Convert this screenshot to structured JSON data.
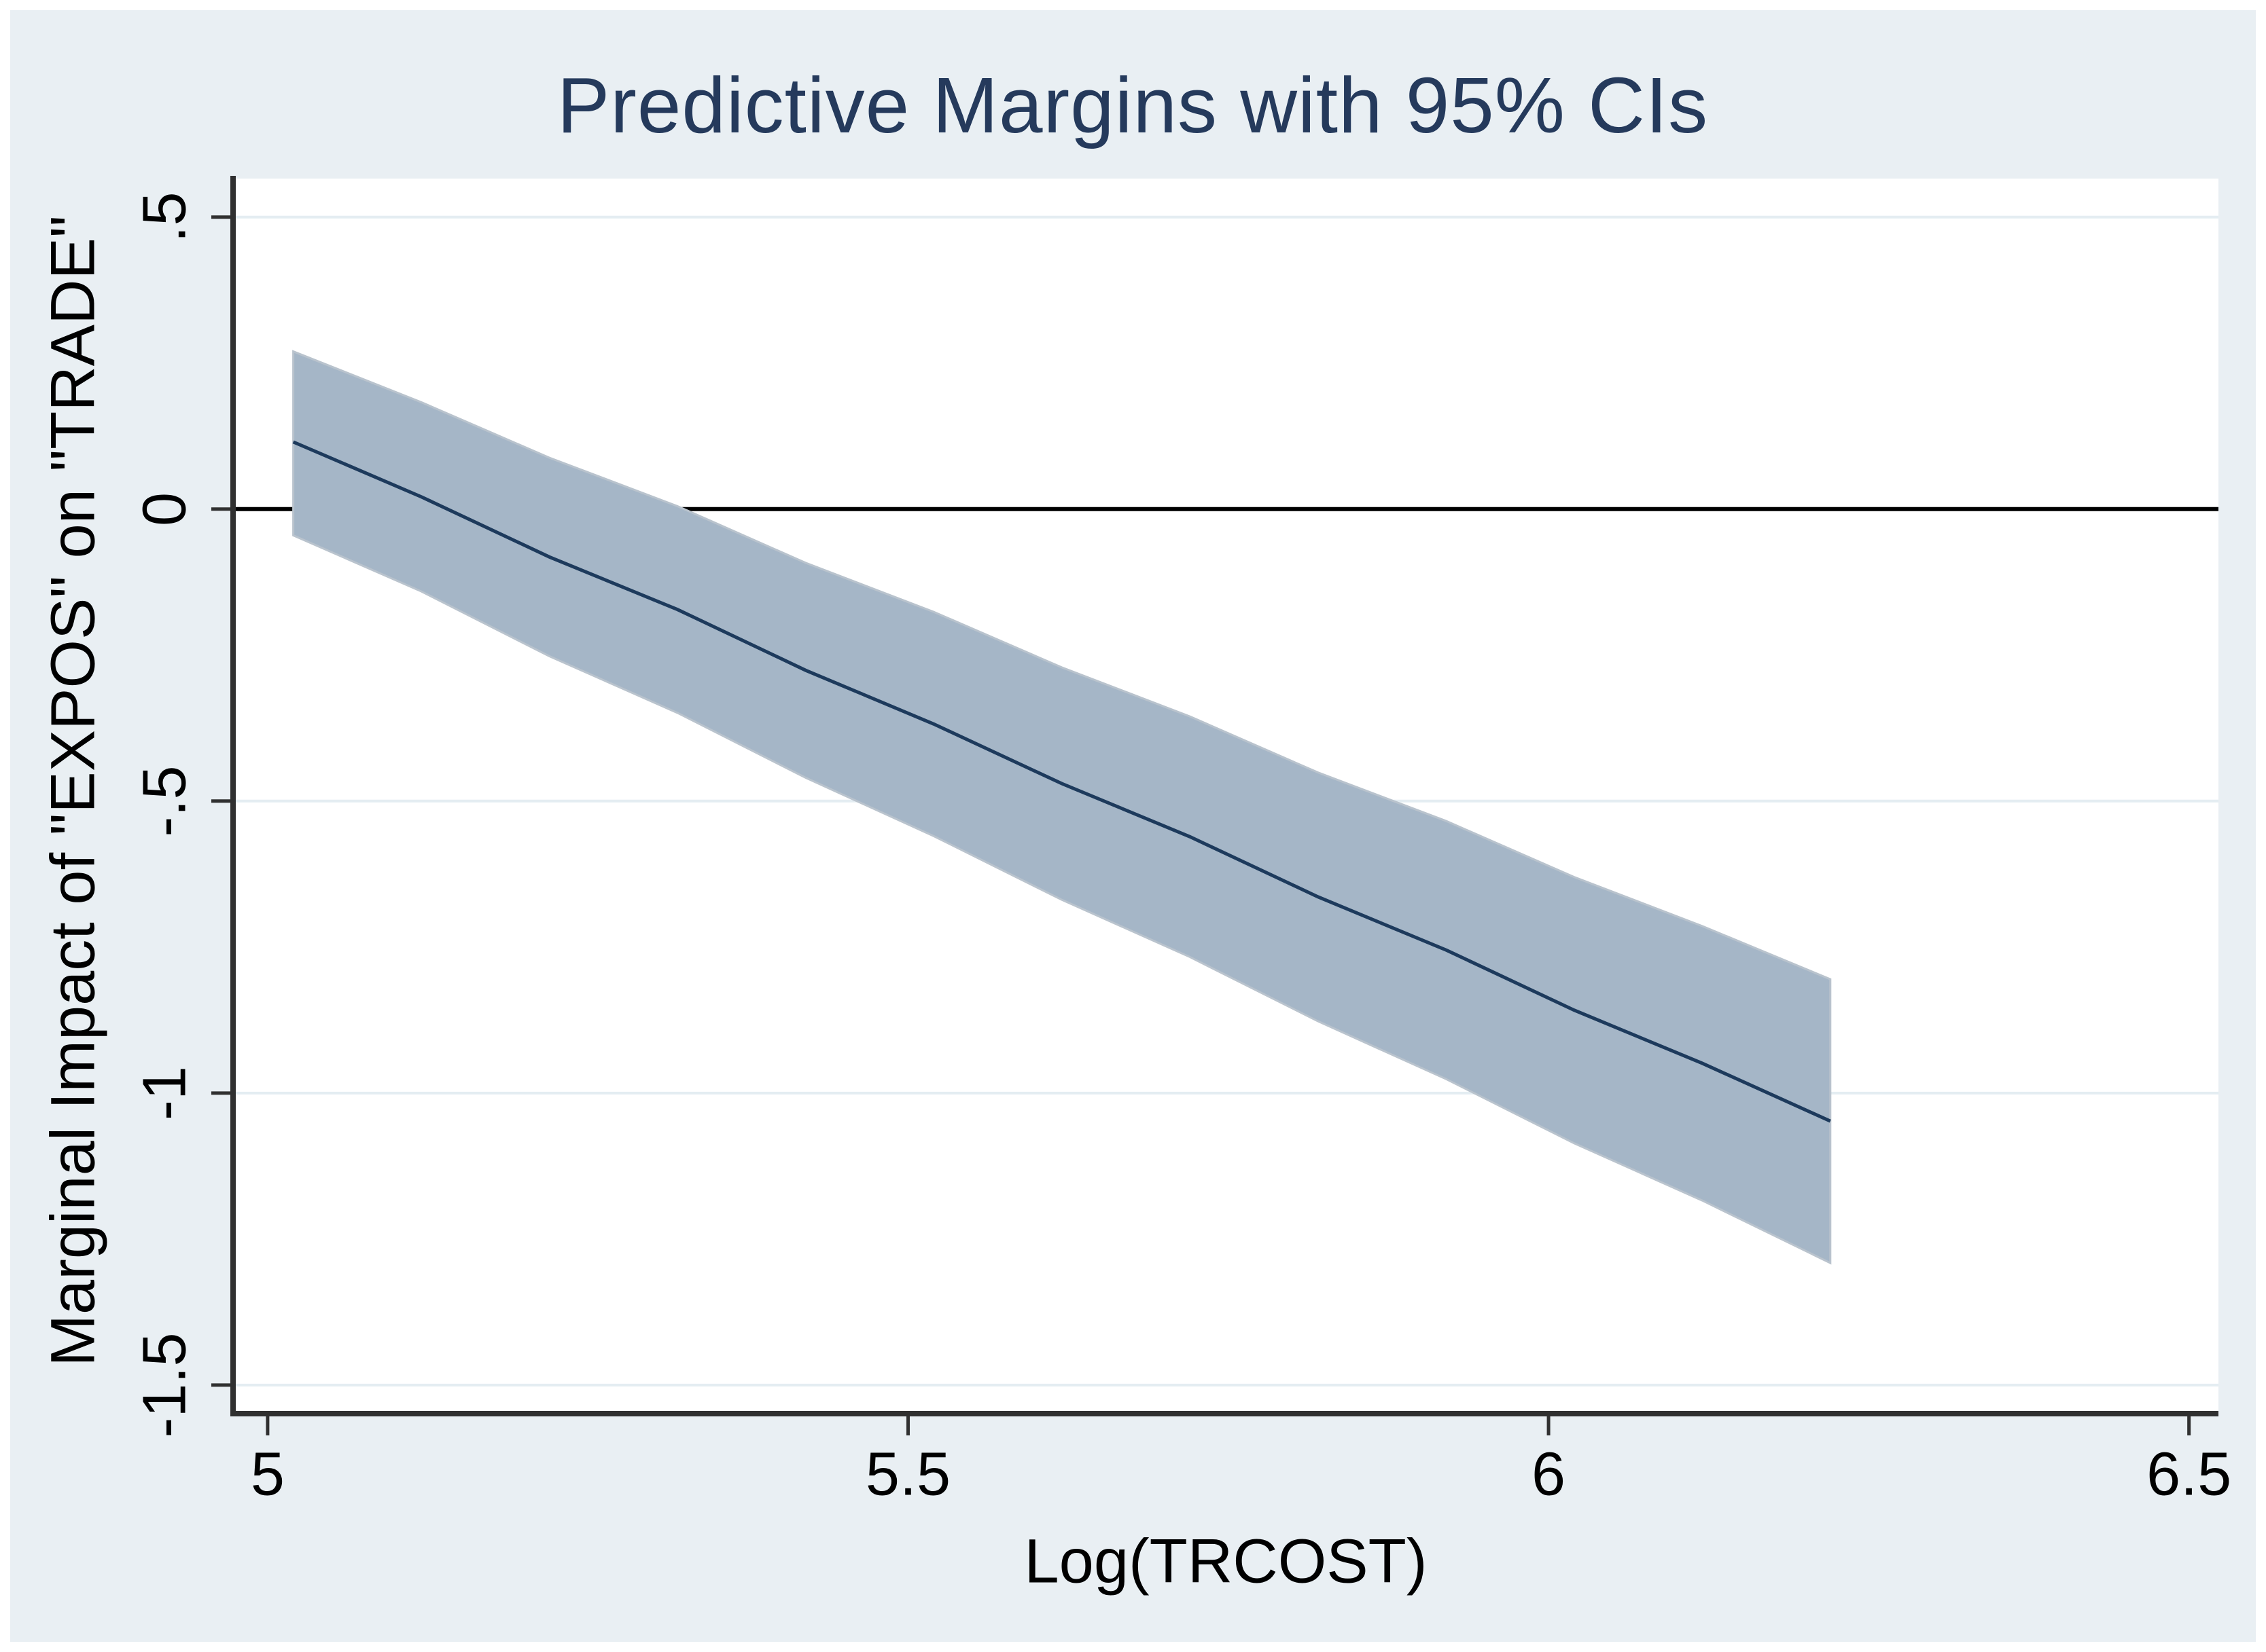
{
  "figure": {
    "background_color": "#ffffff",
    "panel_color": "#e9eff3"
  },
  "chart_data": {
    "type": "line",
    "subtype": "line-with-confidence-band",
    "title": "Predictive Margins with 95% CIs",
    "xlabel": "Log(TRCOST)",
    "ylabel": "Marginal Impact of \"EXPOS\" on \"TRADE\"",
    "legend": "none",
    "grid": "on",
    "xlim": [
      4.973,
      6.523
    ],
    "ylim": [
      -1.549,
      0.566
    ],
    "x_tick_values": [
      5,
      5.5,
      6,
      6.5
    ],
    "x_tick_labels": [
      "5",
      "5.5",
      "6",
      "6.5"
    ],
    "y_tick_values": [
      0.5,
      0,
      -0.5,
      -1,
      -1.5
    ],
    "y_tick_labels": [
      ".5",
      "0",
      "-.5",
      "-1",
      "-1.5"
    ],
    "y_gridline_values": [
      0.5,
      -0.5,
      -1,
      -1.5
    ],
    "zero_line_y": 0,
    "x": [
      5.02,
      5.12,
      5.22,
      5.32,
      5.42,
      5.52,
      5.62,
      5.72,
      5.82,
      5.92,
      6.02,
      6.12,
      6.22
    ],
    "margin": [
      0.115,
      0.021,
      -0.082,
      -0.172,
      -0.276,
      -0.368,
      -0.47,
      -0.561,
      -0.664,
      -0.755,
      -0.858,
      -0.949,
      -1.048
    ],
    "ci_upper": [
      0.27,
      0.183,
      0.088,
      0.005,
      -0.092,
      -0.176,
      -0.271,
      -0.355,
      -0.451,
      -0.534,
      -0.63,
      -0.714,
      -0.805
    ],
    "ci_lower": [
      -0.045,
      -0.141,
      -0.252,
      -0.349,
      -0.46,
      -0.56,
      -0.669,
      -0.767,
      -0.877,
      -0.976,
      -1.086,
      -1.184,
      -1.291
    ],
    "colors": {
      "title_text": "#253a5c",
      "band_fill": "#a5b6c7",
      "band_edge": "#b9c3cd",
      "margin_line": "#1d3a5c",
      "zero_line": "#000000",
      "axis": "#303030",
      "gridline": "#e4edf2",
      "tick_text": "#000000",
      "plot_background": "#ffffff"
    }
  }
}
